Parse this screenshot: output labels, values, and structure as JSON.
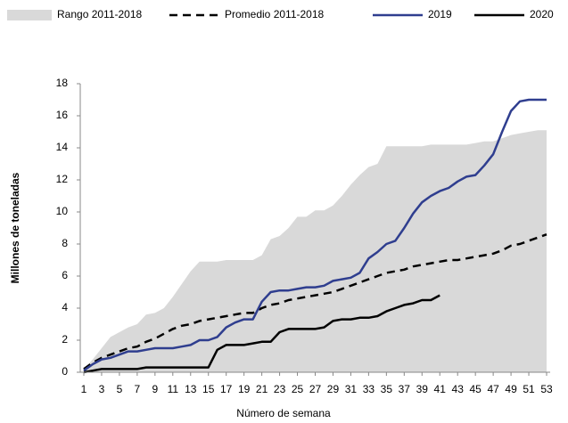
{
  "chart_data": {
    "type": "line",
    "x_label": "Número de semana",
    "y_label": "Millones de toneladas",
    "x": [
      1,
      2,
      3,
      4,
      5,
      6,
      7,
      8,
      9,
      10,
      11,
      12,
      13,
      14,
      15,
      16,
      17,
      18,
      19,
      20,
      21,
      22,
      23,
      24,
      25,
      26,
      27,
      28,
      29,
      30,
      31,
      32,
      33,
      34,
      35,
      36,
      37,
      38,
      39,
      40,
      41,
      42,
      43,
      44,
      45,
      46,
      47,
      48,
      49,
      50,
      51,
      52,
      53
    ],
    "xlim": [
      0.6,
      53.4
    ],
    "xticks": [
      1,
      3,
      5,
      7,
      9,
      11,
      13,
      15,
      17,
      19,
      21,
      23,
      25,
      27,
      29,
      31,
      33,
      35,
      37,
      39,
      41,
      43,
      45,
      47,
      49,
      51,
      53
    ],
    "ylim": [
      0,
      18
    ],
    "yticks": [
      0,
      2,
      4,
      6,
      8,
      10,
      12,
      14,
      16,
      18
    ],
    "grid": false,
    "legend": "top",
    "series": [
      {
        "name": "Rango 2011-2018",
        "color": "#d9d9d9",
        "kind": "area",
        "values": [
          0.2,
          0.8,
          1.5,
          2.2,
          2.5,
          2.8,
          3.0,
          3.6,
          3.7,
          4.0,
          4.7,
          5.5,
          6.3,
          6.9,
          6.9,
          6.9,
          7.0,
          7.0,
          7.0,
          7.0,
          7.3,
          8.3,
          8.5,
          9.0,
          9.7,
          9.7,
          10.1,
          10.1,
          10.4,
          11.0,
          11.7,
          12.3,
          12.8,
          13.0,
          14.1,
          14.1,
          14.1,
          14.1,
          14.1,
          14.2,
          14.2,
          14.2,
          14.2,
          14.2,
          14.3,
          14.4,
          14.4,
          14.6,
          14.8,
          14.9,
          15.0,
          15.1,
          15.1
        ]
      },
      {
        "name": "Promedio 2011-2018",
        "color": "#000000",
        "kind": "dashed",
        "values": [
          0.2,
          0.6,
          0.9,
          1.1,
          1.3,
          1.5,
          1.6,
          1.9,
          2.1,
          2.4,
          2.7,
          2.9,
          3.0,
          3.2,
          3.3,
          3.4,
          3.5,
          3.6,
          3.7,
          3.7,
          4.0,
          4.2,
          4.3,
          4.5,
          4.6,
          4.7,
          4.8,
          4.9,
          5.0,
          5.2,
          5.4,
          5.6,
          5.8,
          6.0,
          6.2,
          6.3,
          6.4,
          6.6,
          6.7,
          6.8,
          6.9,
          7.0,
          7.0,
          7.1,
          7.2,
          7.3,
          7.4,
          7.6,
          7.9,
          8.0,
          8.2,
          8.4,
          8.6
        ]
      },
      {
        "name": "2019",
        "color": "#2f3e8f",
        "kind": "solid",
        "values": [
          0.1,
          0.5,
          0.8,
          0.9,
          1.1,
          1.3,
          1.3,
          1.4,
          1.5,
          1.5,
          1.5,
          1.6,
          1.7,
          2.0,
          2.0,
          2.2,
          2.8,
          3.1,
          3.3,
          3.3,
          4.4,
          5.0,
          5.1,
          5.1,
          5.2,
          5.3,
          5.3,
          5.4,
          5.7,
          5.8,
          5.9,
          6.2,
          7.1,
          7.5,
          8.0,
          8.2,
          9.0,
          9.9,
          10.6,
          11.0,
          11.3,
          11.5,
          11.9,
          12.2,
          12.3,
          12.9,
          13.6,
          15.0,
          16.3,
          16.9,
          17.0,
          17.0,
          17.0
        ]
      },
      {
        "name": "2020",
        "color": "#000000",
        "kind": "solid",
        "values": [
          0.0,
          0.1,
          0.2,
          0.2,
          0.2,
          0.2,
          0.2,
          0.3,
          0.3,
          0.3,
          0.3,
          0.3,
          0.3,
          0.3,
          0.3,
          1.4,
          1.7,
          1.7,
          1.7,
          1.8,
          1.9,
          1.9,
          2.5,
          2.7,
          2.7,
          2.7,
          2.7,
          2.8,
          3.2,
          3.3,
          3.3,
          3.4,
          3.4,
          3.5,
          3.8,
          4.0,
          4.2,
          4.3,
          4.5,
          4.5,
          4.8,
          null,
          null,
          null,
          null,
          null,
          null,
          null,
          null,
          null,
          null,
          null,
          null
        ]
      }
    ]
  }
}
